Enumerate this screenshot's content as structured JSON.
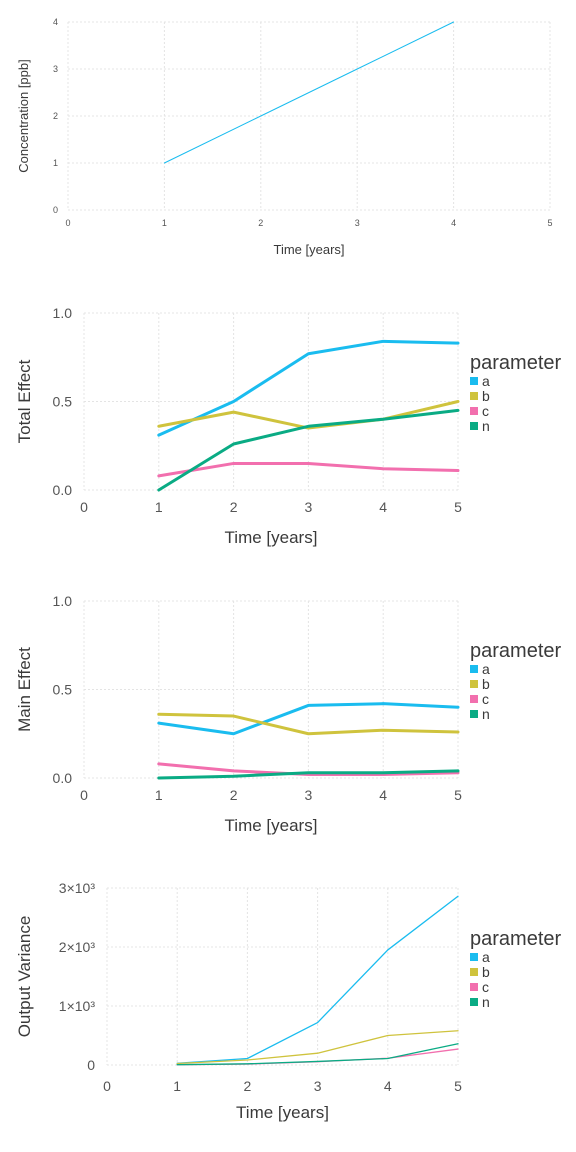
{
  "colors": {
    "a": "#1abcef",
    "b": "#cfc33d",
    "c": "#f26fae",
    "n": "#0aab84",
    "axis_text": "#555555",
    "label_text": "#3a3a3a",
    "grid": "#e4e4e4"
  },
  "chart_data": [
    {
      "type": "line",
      "title": "",
      "xlabel": "Time [years]",
      "ylabel": "Concentration [ppb]",
      "xlim": [
        0,
        5
      ],
      "ylim": [
        0,
        4
      ],
      "xticks": [
        "0",
        "1",
        "2",
        "3",
        "4",
        "5"
      ],
      "yticks": [
        "0",
        "1",
        "2",
        "3",
        "4"
      ],
      "grid": true,
      "legend": null,
      "series": [
        {
          "color_key": "a",
          "x": [
            1,
            2,
            3,
            4
          ],
          "y": [
            1,
            2,
            3,
            4
          ]
        }
      ]
    },
    {
      "type": "line",
      "title": "",
      "xlabel": "Time [years]",
      "ylabel": "Total Effect",
      "xlim": [
        0,
        5
      ],
      "ylim": [
        0,
        1
      ],
      "xticks": [
        "0",
        "1",
        "2",
        "3",
        "4",
        "5"
      ],
      "yticks": [
        "0.0",
        "0.5",
        "1.0"
      ],
      "grid": true,
      "legend": {
        "title": "parameter",
        "position": "right"
      },
      "series": [
        {
          "name": "a",
          "color_key": "a",
          "x": [
            1,
            2,
            3,
            4,
            5
          ],
          "y": [
            0.31,
            0.5,
            0.77,
            0.84,
            0.83
          ]
        },
        {
          "name": "b",
          "color_key": "b",
          "x": [
            1,
            2,
            3,
            4,
            5
          ],
          "y": [
            0.36,
            0.44,
            0.35,
            0.4,
            0.5
          ]
        },
        {
          "name": "c",
          "color_key": "c",
          "x": [
            1,
            2,
            3,
            4,
            5
          ],
          "y": [
            0.08,
            0.15,
            0.15,
            0.12,
            0.11
          ]
        },
        {
          "name": "n",
          "color_key": "n",
          "x": [
            1,
            2,
            3,
            4,
            5
          ],
          "y": [
            0.0,
            0.26,
            0.36,
            0.4,
            0.45
          ]
        }
      ]
    },
    {
      "type": "line",
      "title": "",
      "xlabel": "Time [years]",
      "ylabel": "Main Effect",
      "xlim": [
        0,
        5
      ],
      "ylim": [
        0,
        1
      ],
      "xticks": [
        "0",
        "1",
        "2",
        "3",
        "4",
        "5"
      ],
      "yticks": [
        "0.0",
        "0.5",
        "1.0"
      ],
      "grid": true,
      "legend": {
        "title": "parameter",
        "position": "right"
      },
      "series": [
        {
          "name": "a",
          "color_key": "a",
          "x": [
            1,
            2,
            3,
            4,
            5
          ],
          "y": [
            0.31,
            0.25,
            0.41,
            0.42,
            0.4
          ]
        },
        {
          "name": "b",
          "color_key": "b",
          "x": [
            1,
            2,
            3,
            4,
            5
          ],
          "y": [
            0.36,
            0.35,
            0.25,
            0.27,
            0.26
          ]
        },
        {
          "name": "c",
          "color_key": "c",
          "x": [
            1,
            2,
            3,
            4,
            5
          ],
          "y": [
            0.08,
            0.04,
            0.02,
            0.02,
            0.03
          ]
        },
        {
          "name": "n",
          "color_key": "n",
          "x": [
            1,
            2,
            3,
            4,
            5
          ],
          "y": [
            0.0,
            0.01,
            0.03,
            0.03,
            0.04
          ]
        }
      ]
    },
    {
      "type": "line",
      "title": "",
      "xlabel": "Time [years]",
      "ylabel": "Output Variance",
      "xlim": [
        0,
        5
      ],
      "ylim": [
        0,
        3000
      ],
      "xticks": [
        "0",
        "1",
        "2",
        "3",
        "4",
        "5"
      ],
      "yticks": [
        "0",
        "1×10³",
        "2×10³",
        "3×10³"
      ],
      "grid": true,
      "legend": {
        "title": "parameter",
        "position": "right"
      },
      "series": [
        {
          "name": "a",
          "color_key": "a",
          "x": [
            1,
            2,
            3,
            4,
            5
          ],
          "y": [
            30,
            110,
            720,
            1950,
            2860
          ]
        },
        {
          "name": "b",
          "color_key": "b",
          "x": [
            1,
            2,
            3,
            4,
            5
          ],
          "y": [
            25,
            85,
            200,
            500,
            580
          ]
        },
        {
          "name": "c",
          "color_key": "c",
          "x": [
            1,
            2,
            3,
            4,
            5
          ],
          "y": [
            5,
            15,
            55,
            115,
            270
          ]
        },
        {
          "name": "n",
          "color_key": "n",
          "x": [
            1,
            2,
            3,
            4,
            5
          ],
          "y": [
            5,
            20,
            60,
            110,
            360
          ]
        }
      ]
    }
  ]
}
